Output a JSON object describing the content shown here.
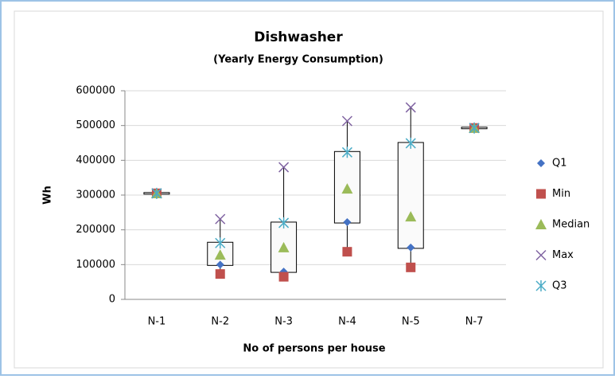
{
  "chart_data": {
    "type": "box-markers",
    "title": "Dishwasher",
    "subtitle": "(Yearly Energy Consumption)",
    "x_label": "No of persons per house",
    "y_label": "Wh",
    "categories": [
      "N-1",
      "N-2",
      "N-3",
      "N-4",
      "N-5",
      "N-7"
    ],
    "series": [
      {
        "name": "Q1",
        "color": "#4472c4",
        "marker": "diamond",
        "values": [
          305000,
          100000,
          80000,
          222000,
          149000,
          493000
        ]
      },
      {
        "name": "Min",
        "color": "#c0504d",
        "marker": "square",
        "values": [
          305000,
          73000,
          65000,
          137000,
          92000,
          493000
        ]
      },
      {
        "name": "Median",
        "color": "#9bbb59",
        "marker": "triangle",
        "values": [
          305000,
          128000,
          149000,
          318000,
          238000,
          493000
        ]
      },
      {
        "name": "Max",
        "color": "#8064a2",
        "marker": "x",
        "values": [
          305000,
          231000,
          380000,
          513000,
          552000,
          493000
        ]
      },
      {
        "name": "Q3",
        "color": "#4bacc6",
        "marker": "star",
        "values": [
          305000,
          162000,
          220000,
          423000,
          449000,
          493000
        ]
      }
    ],
    "ylim": [
      0,
      600000
    ],
    "yticks": [
      0,
      100000,
      200000,
      300000,
      400000,
      500000,
      600000
    ],
    "grid": true,
    "legend": "right"
  }
}
